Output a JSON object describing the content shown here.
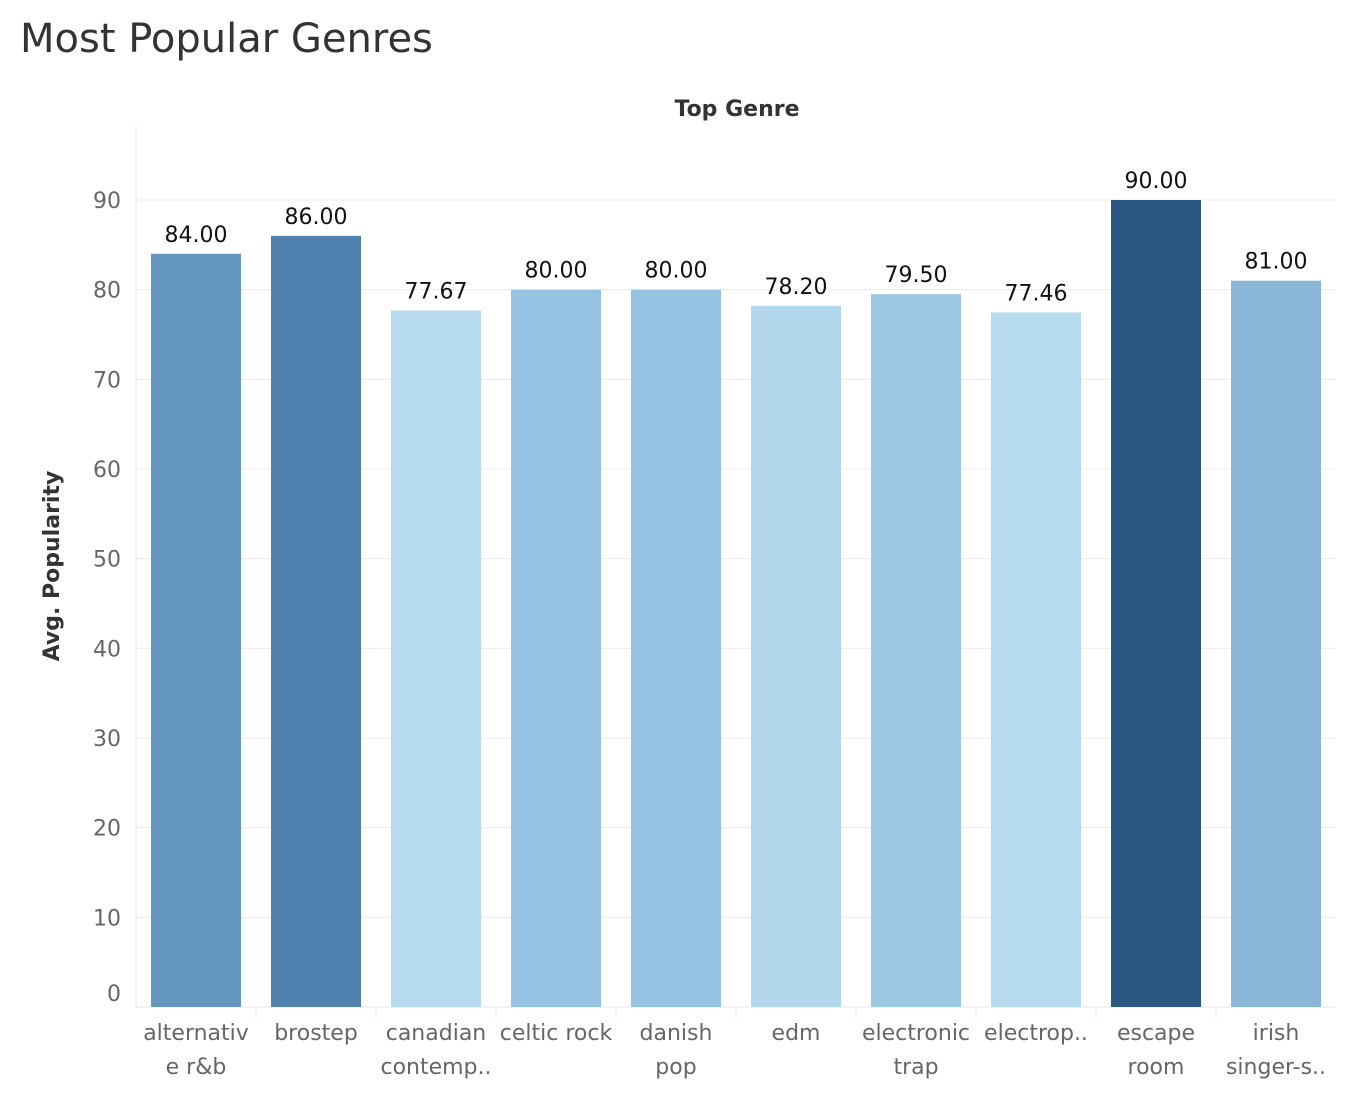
{
  "title": "Most Popular Genres",
  "chart_data": {
    "type": "bar",
    "title": "Most Popular Genres",
    "header": "Top Genre",
    "ylabel": "Avg. Popularity",
    "ylim": [
      0,
      90
    ],
    "yticks": [
      "0",
      "10",
      "20",
      "30",
      "40",
      "50",
      "60",
      "70",
      "80",
      "90"
    ],
    "grid": true,
    "categories": [
      [
        "alternativ",
        "e r&b"
      ],
      [
        "brostep"
      ],
      [
        "canadian",
        "contemp.."
      ],
      [
        "celtic rock"
      ],
      [
        "danish",
        "pop"
      ],
      [
        "edm"
      ],
      [
        "electronic",
        "trap"
      ],
      [
        "electrop.."
      ],
      [
        "escape",
        "room"
      ],
      [
        "irish",
        "singer-s.."
      ]
    ],
    "values": [
      84.0,
      86.0,
      77.67,
      80.0,
      80.0,
      78.2,
      79.5,
      77.46,
      90.0,
      81.0
    ],
    "labels": [
      "84.00",
      "86.00",
      "77.67",
      "80.00",
      "80.00",
      "78.20",
      "79.50",
      "77.46",
      "90.00",
      "81.00"
    ],
    "colors": [
      "#6596c0",
      "#4f80ae",
      "#b6daee",
      "#96c2e1",
      "#96c2e1",
      "#b2d7ec",
      "#9cc8e4",
      "#b6daee",
      "#2b5783",
      "#8ab6d8"
    ]
  }
}
